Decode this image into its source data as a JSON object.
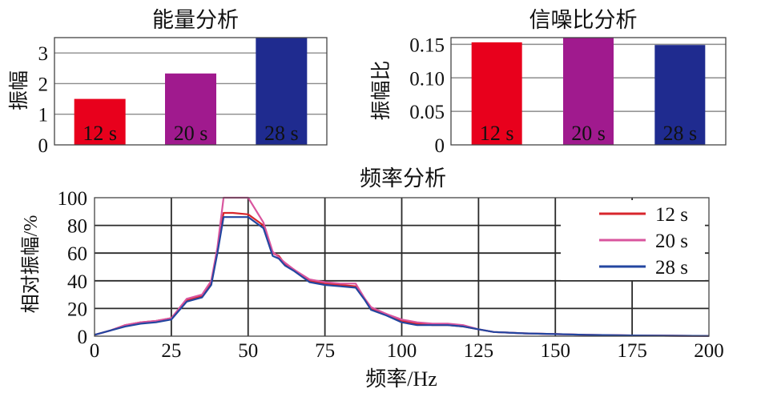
{
  "chart_data": [
    {
      "type": "bar",
      "title": "能量分析",
      "ylabel": "振幅",
      "xlabel": "",
      "categories": [
        "12 s",
        "20 s",
        "28 s"
      ],
      "values": [
        1.5,
        2.33,
        3.5
      ],
      "ylim": [
        0,
        3.5
      ],
      "yticks": [
        "0",
        "1",
        "2",
        "3"
      ],
      "colors": [
        "#e8001c",
        "#a01a8e",
        "#1f2b8f"
      ],
      "grid": "horizontal"
    },
    {
      "type": "bar",
      "title": "信噪比分析",
      "ylabel": "振幅比",
      "xlabel": "",
      "categories": [
        "12 s",
        "20 s",
        "28 s"
      ],
      "values": [
        0.153,
        0.162,
        0.149
      ],
      "ylim": [
        0,
        0.16
      ],
      "yticks": [
        "0",
        "0.05",
        "0.10",
        "0.15"
      ],
      "colors": [
        "#e8001c",
        "#a01a8e",
        "#1f2b8f"
      ],
      "grid": "horizontal"
    },
    {
      "type": "line",
      "title": "频率分析",
      "xlabel": "频率/Hz",
      "ylabel": "相对振幅/%",
      "xlim": [
        0,
        200
      ],
      "ylim": [
        0,
        100
      ],
      "xticks": [
        "0",
        "25",
        "50",
        "75",
        "100",
        "125",
        "150",
        "175",
        "200"
      ],
      "yticks": [
        "0",
        "20",
        "40",
        "60",
        "80",
        "100"
      ],
      "grid": "both",
      "legend": "top-right",
      "x": [
        0,
        5,
        10,
        15,
        20,
        25,
        30,
        35,
        38,
        40,
        42,
        45,
        50,
        55,
        58,
        60,
        62,
        65,
        70,
        75,
        80,
        85,
        88,
        90,
        95,
        100,
        105,
        110,
        115,
        120,
        125,
        130,
        140,
        150,
        160,
        175,
        190,
        200
      ],
      "series": [
        {
          "name": "12 s",
          "color": "#d8262c",
          "values": [
            1,
            4,
            8,
            10,
            11,
            13,
            26,
            29,
            38,
            62,
            89,
            89,
            88,
            80,
            60,
            58,
            52,
            48,
            40,
            38,
            37,
            36,
            27,
            20,
            16,
            11,
            9,
            8,
            8,
            7,
            5,
            3,
            2,
            1.5,
            1,
            0.5,
            0.3,
            0.2
          ]
        },
        {
          "name": "20 s",
          "color": "#d9559e",
          "values": [
            1,
            4,
            8,
            10,
            11,
            13,
            27,
            30,
            40,
            64,
            100,
            100,
            100,
            82,
            61,
            57,
            53,
            48,
            41,
            39,
            38,
            38,
            27,
            21,
            16,
            12,
            10,
            9,
            9,
            8,
            5,
            3,
            2,
            1.5,
            1,
            0.5,
            0.3,
            0.2
          ]
        },
        {
          "name": "28 s",
          "color": "#2346a0",
          "values": [
            1,
            4,
            7,
            9,
            10,
            12,
            25,
            28,
            37,
            60,
            86,
            86,
            86,
            78,
            58,
            56,
            51,
            47,
            39,
            37,
            36,
            35,
            26,
            19,
            15,
            10,
            8,
            8,
            8,
            7,
            5,
            3,
            2,
            1.5,
            1,
            0.5,
            0.3,
            0.2
          ]
        }
      ]
    }
  ]
}
